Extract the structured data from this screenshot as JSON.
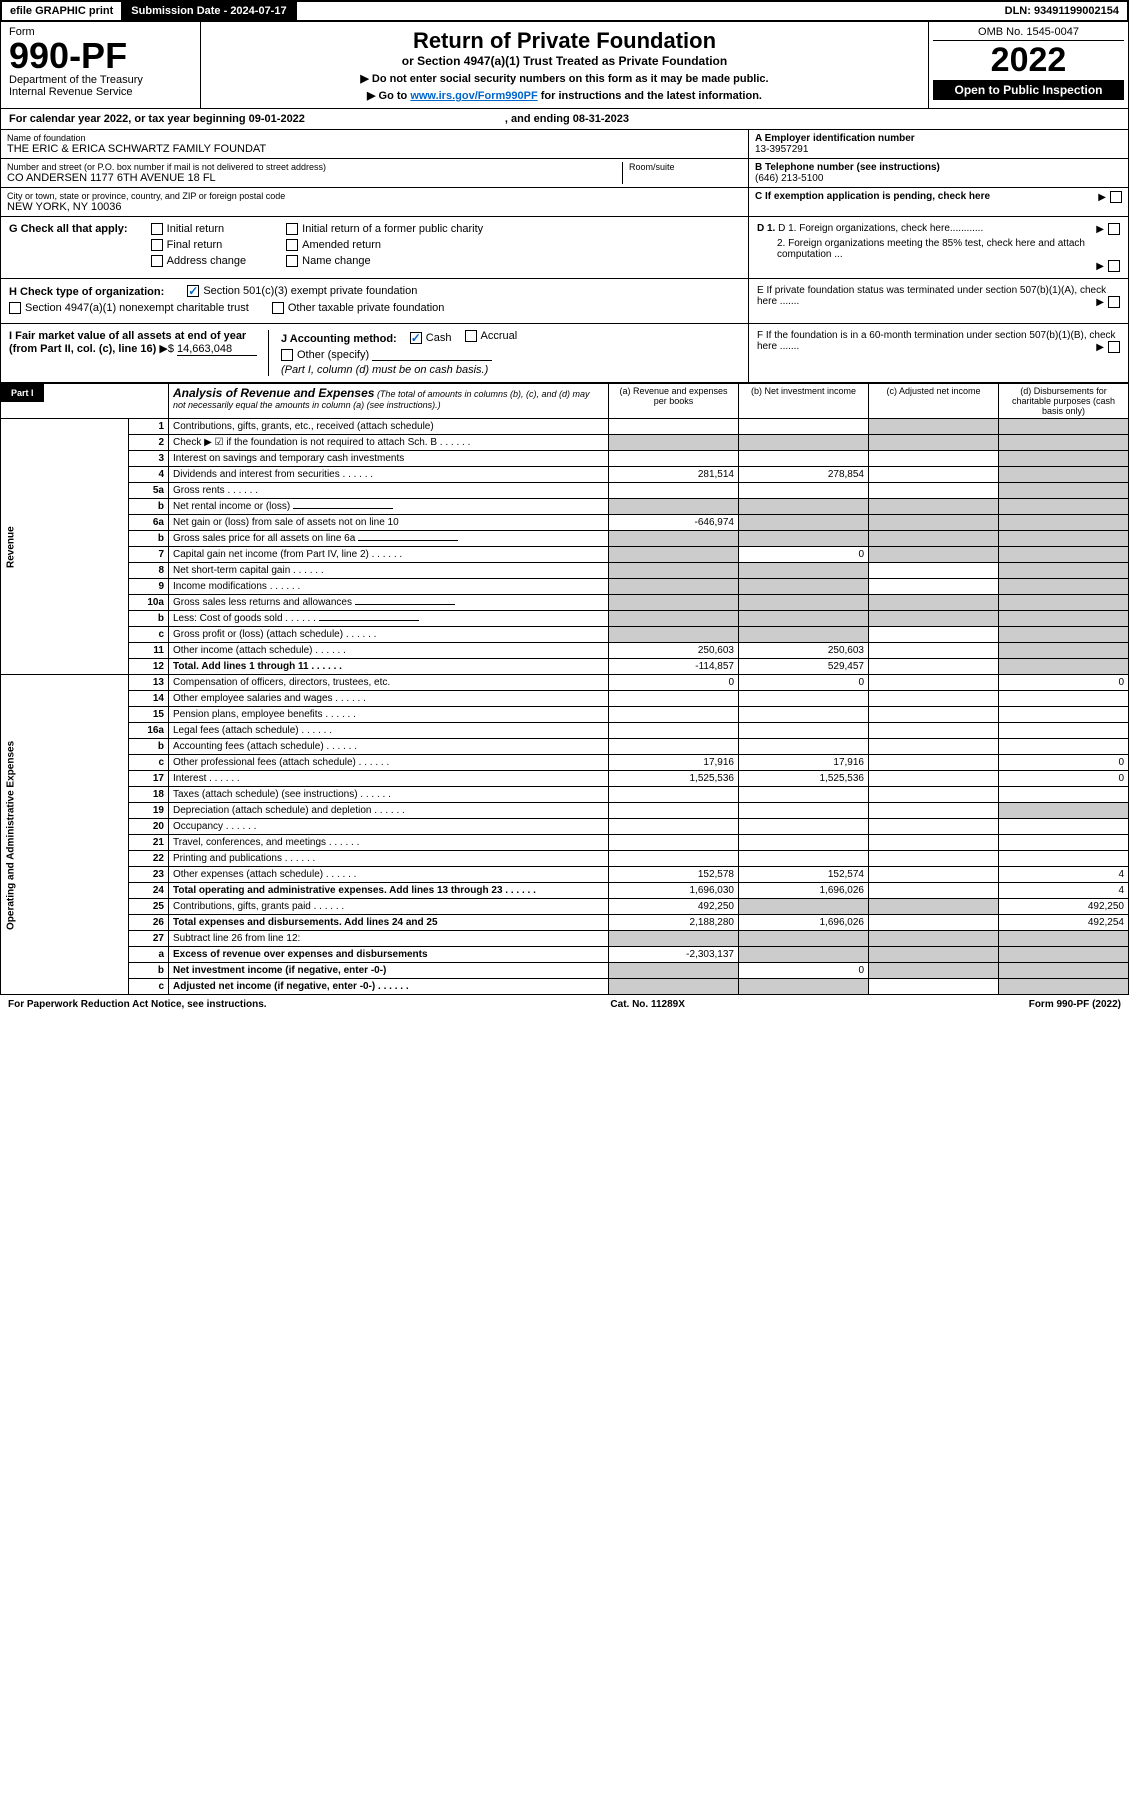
{
  "top": {
    "efile": "efile GRAPHIC print",
    "sub_date_label": "Submission Date - 2024-07-17",
    "dln": "DLN: 93491199002154"
  },
  "header": {
    "form_label": "Form",
    "form_num": "990-PF",
    "dept": "Department of the Treasury",
    "irs": "Internal Revenue Service",
    "title": "Return of Private Foundation",
    "subtitle": "or Section 4947(a)(1) Trust Treated as Private Foundation",
    "instr1": "▶ Do not enter social security numbers on this form as it may be made public.",
    "instr2_pre": "▶ Go to ",
    "instr2_link": "www.irs.gov/Form990PF",
    "instr2_post": " for instructions and the latest information.",
    "omb": "OMB No. 1545-0047",
    "year": "2022",
    "open": "Open to Public Inspection"
  },
  "cal": {
    "text": "For calendar year 2022, or tax year beginning 09-01-2022",
    "ending": ", and ending 08-31-2023"
  },
  "ident": {
    "name_label": "Name of foundation",
    "name": "THE ERIC & ERICA SCHWARTZ FAMILY FOUNDAT",
    "addr_label": "Number and street (or P.O. box number if mail is not delivered to street address)",
    "addr": "CO ANDERSEN 1177 6TH AVENUE 18 FL",
    "room_label": "Room/suite",
    "city_label": "City or town, state or province, country, and ZIP or foreign postal code",
    "city": "NEW YORK, NY  10036",
    "ein_label": "A Employer identification number",
    "ein": "13-3957291",
    "phone_label": "B Telephone number (see instructions)",
    "phone": "(646) 213-5100",
    "c_label": "C If exemption application is pending, check here",
    "d1": "D 1. Foreign organizations, check here............",
    "d2": "2. Foreign organizations meeting the 85% test, check here and attach computation ...",
    "e_label": "E  If private foundation status was terminated under section 507(b)(1)(A), check here .......",
    "f_label": "F  If the foundation is in a 60-month termination under section 507(b)(1)(B), check here ......."
  },
  "g": {
    "label": "G Check all that apply:",
    "opts": [
      "Initial return",
      "Final return",
      "Address change",
      "Initial return of a former public charity",
      "Amended return",
      "Name change"
    ]
  },
  "h": {
    "label": "H Check type of organization:",
    "opt1": "Section 501(c)(3) exempt private foundation",
    "opt2": "Section 4947(a)(1) nonexempt charitable trust",
    "opt3": "Other taxable private foundation"
  },
  "i": {
    "label": "I Fair market value of all assets at end of year (from Part II, col. (c), line 16)",
    "val": "14,663,048"
  },
  "j": {
    "label": "J Accounting method:",
    "cash": "Cash",
    "accrual": "Accrual",
    "other": "Other (specify)",
    "note": "(Part I, column (d) must be on cash basis.)"
  },
  "part1": {
    "label": "Part I",
    "title": "Analysis of Revenue and Expenses",
    "note": "(The total of amounts in columns (b), (c), and (d) may not necessarily equal the amounts in column (a) (see instructions).)",
    "col_a": "(a) Revenue and expenses per books",
    "col_b": "(b) Net investment income",
    "col_c": "(c) Adjusted net income",
    "col_d": "(d) Disbursements for charitable purposes (cash basis only)"
  },
  "vert": {
    "revenue": "Revenue",
    "opex": "Operating and Administrative Expenses"
  },
  "rows": [
    {
      "n": "1",
      "desc": "Contributions, gifts, grants, etc., received (attach schedule)",
      "a": "",
      "b": "",
      "c": "s",
      "d": "s"
    },
    {
      "n": "2",
      "desc": "Check ▶ ☑ if the foundation is not required to attach Sch. B",
      "a": "s",
      "b": "s",
      "c": "s",
      "d": "s",
      "dots": true
    },
    {
      "n": "3",
      "desc": "Interest on savings and temporary cash investments",
      "a": "",
      "b": "",
      "c": "",
      "d": "s"
    },
    {
      "n": "4",
      "desc": "Dividends and interest from securities",
      "a": "281,514",
      "b": "278,854",
      "c": "",
      "d": "s",
      "dots": true
    },
    {
      "n": "5a",
      "desc": "Gross rents",
      "a": "",
      "b": "",
      "c": "",
      "d": "s",
      "dots": true
    },
    {
      "n": "b",
      "desc": "Net rental income or (loss)",
      "a": "s",
      "b": "s",
      "c": "s",
      "d": "s",
      "inline": true
    },
    {
      "n": "6a",
      "desc": "Net gain or (loss) from sale of assets not on line 10",
      "a": "-646,974",
      "b": "s",
      "c": "s",
      "d": "s"
    },
    {
      "n": "b",
      "desc": "Gross sales price for all assets on line 6a",
      "a": "s",
      "b": "s",
      "c": "s",
      "d": "s",
      "inline": true
    },
    {
      "n": "7",
      "desc": "Capital gain net income (from Part IV, line 2)",
      "a": "s",
      "b": "0",
      "c": "s",
      "d": "s",
      "dots": true
    },
    {
      "n": "8",
      "desc": "Net short-term capital gain",
      "a": "s",
      "b": "s",
      "c": "",
      "d": "s",
      "dots": true
    },
    {
      "n": "9",
      "desc": "Income modifications",
      "a": "s",
      "b": "s",
      "c": "",
      "d": "s",
      "dots": true
    },
    {
      "n": "10a",
      "desc": "Gross sales less returns and allowances",
      "a": "s",
      "b": "s",
      "c": "s",
      "d": "s",
      "inline": true
    },
    {
      "n": "b",
      "desc": "Less: Cost of goods sold",
      "a": "s",
      "b": "s",
      "c": "s",
      "d": "s",
      "inline": true,
      "dots": true
    },
    {
      "n": "c",
      "desc": "Gross profit or (loss) (attach schedule)",
      "a": "s",
      "b": "s",
      "c": "",
      "d": "s",
      "dots": true
    },
    {
      "n": "11",
      "desc": "Other income (attach schedule)",
      "a": "250,603",
      "b": "250,603",
      "c": "",
      "d": "s",
      "dots": true
    },
    {
      "n": "12",
      "desc": "Total. Add lines 1 through 11",
      "a": "-114,857",
      "b": "529,457",
      "c": "",
      "d": "s",
      "bold": true,
      "dots": true
    }
  ],
  "oprows": [
    {
      "n": "13",
      "desc": "Compensation of officers, directors, trustees, etc.",
      "a": "0",
      "b": "0",
      "c": "",
      "d": "0"
    },
    {
      "n": "14",
      "desc": "Other employee salaries and wages",
      "a": "",
      "b": "",
      "c": "",
      "d": "",
      "dots": true
    },
    {
      "n": "15",
      "desc": "Pension plans, employee benefits",
      "a": "",
      "b": "",
      "c": "",
      "d": "",
      "dots": true
    },
    {
      "n": "16a",
      "desc": "Legal fees (attach schedule)",
      "a": "",
      "b": "",
      "c": "",
      "d": "",
      "dots": true
    },
    {
      "n": "b",
      "desc": "Accounting fees (attach schedule)",
      "a": "",
      "b": "",
      "c": "",
      "d": "",
      "dots": true
    },
    {
      "n": "c",
      "desc": "Other professional fees (attach schedule)",
      "a": "17,916",
      "b": "17,916",
      "c": "",
      "d": "0",
      "dots": true
    },
    {
      "n": "17",
      "desc": "Interest",
      "a": "1,525,536",
      "b": "1,525,536",
      "c": "",
      "d": "0",
      "dots": true
    },
    {
      "n": "18",
      "desc": "Taxes (attach schedule) (see instructions)",
      "a": "",
      "b": "",
      "c": "",
      "d": "",
      "dots": true
    },
    {
      "n": "19",
      "desc": "Depreciation (attach schedule) and depletion",
      "a": "",
      "b": "",
      "c": "",
      "d": "s",
      "dots": true
    },
    {
      "n": "20",
      "desc": "Occupancy",
      "a": "",
      "b": "",
      "c": "",
      "d": "",
      "dots": true
    },
    {
      "n": "21",
      "desc": "Travel, conferences, and meetings",
      "a": "",
      "b": "",
      "c": "",
      "d": "",
      "dots": true
    },
    {
      "n": "22",
      "desc": "Printing and publications",
      "a": "",
      "b": "",
      "c": "",
      "d": "",
      "dots": true
    },
    {
      "n": "23",
      "desc": "Other expenses (attach schedule)",
      "a": "152,578",
      "b": "152,574",
      "c": "",
      "d": "4",
      "dots": true
    },
    {
      "n": "24",
      "desc": "Total operating and administrative expenses. Add lines 13 through 23",
      "a": "1,696,030",
      "b": "1,696,026",
      "c": "",
      "d": "4",
      "bold": true,
      "dots": true
    },
    {
      "n": "25",
      "desc": "Contributions, gifts, grants paid",
      "a": "492,250",
      "b": "s",
      "c": "s",
      "d": "492,250",
      "dots": true
    },
    {
      "n": "26",
      "desc": "Total expenses and disbursements. Add lines 24 and 25",
      "a": "2,188,280",
      "b": "1,696,026",
      "c": "",
      "d": "492,254",
      "bold": true
    },
    {
      "n": "27",
      "desc": "Subtract line 26 from line 12:",
      "a": "s",
      "b": "s",
      "c": "s",
      "d": "s"
    },
    {
      "n": "a",
      "desc": "Excess of revenue over expenses and disbursements",
      "a": "-2,303,137",
      "b": "s",
      "c": "s",
      "d": "s",
      "bold": true
    },
    {
      "n": "b",
      "desc": "Net investment income (if negative, enter -0-)",
      "a": "s",
      "b": "0",
      "c": "s",
      "d": "s",
      "bold": true
    },
    {
      "n": "c",
      "desc": "Adjusted net income (if negative, enter -0-)",
      "a": "s",
      "b": "s",
      "c": "",
      "d": "s",
      "bold": true,
      "dots": true
    }
  ],
  "footer": {
    "left": "For Paperwork Reduction Act Notice, see instructions.",
    "mid": "Cat. No. 11289X",
    "right": "Form 990-PF (2022)"
  }
}
